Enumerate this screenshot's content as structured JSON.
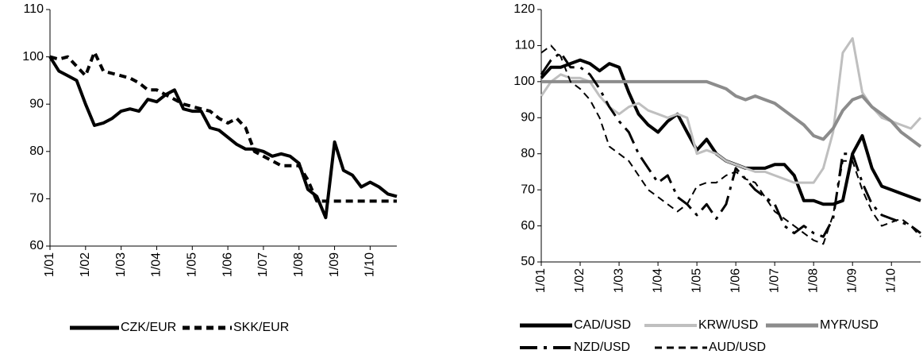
{
  "chart_data": [
    {
      "type": "line",
      "categories": [
        "1/01",
        null,
        null,
        null,
        "1/02",
        null,
        null,
        null,
        "1/03",
        null,
        null,
        null,
        "1/04",
        null,
        null,
        null,
        "1/05",
        null,
        null,
        null,
        "1/06",
        null,
        null,
        null,
        "1/07",
        null,
        null,
        null,
        "1/08",
        null,
        null,
        null,
        "1/09",
        null,
        null,
        null,
        "1/10",
        null,
        null,
        null
      ],
      "ylim": [
        60,
        110
      ],
      "yticks": [
        60,
        70,
        80,
        90,
        100,
        110
      ],
      "series": [
        {
          "name": "CZK/EUR",
          "color": "#000000",
          "style": "solid",
          "width": 4,
          "values": [
            100,
            97,
            96,
            95,
            90,
            85.5,
            86,
            87,
            88.5,
            89,
            88.5,
            91,
            90.5,
            92,
            93,
            89,
            88.5,
            88.5,
            85,
            84.5,
            83,
            81.5,
            80.5,
            80.5,
            80,
            79,
            79.5,
            79,
            77.5,
            72,
            70.5,
            66,
            82,
            76,
            75,
            72.5,
            73.5,
            72.5,
            71,
            70.5
          ]
        },
        {
          "name": "SKK/EUR",
          "color": "#000000",
          "style": "dashed",
          "width": 4,
          "values": [
            100,
            99.5,
            100,
            98,
            96,
            101,
            97,
            96.5,
            96,
            95.5,
            94.5,
            93,
            93,
            92,
            91,
            90,
            89.5,
            89,
            88.5,
            87,
            86,
            87,
            85,
            80,
            79,
            78,
            77,
            77,
            77,
            74,
            69.5,
            69.5,
            69.5,
            69.5,
            69.5,
            69.5,
            69.5,
            69.5,
            69.5,
            69.5
          ]
        }
      ]
    },
    {
      "type": "line",
      "categories": [
        "1/01",
        null,
        null,
        null,
        "1/02",
        null,
        null,
        null,
        "1/03",
        null,
        null,
        null,
        "1/04",
        null,
        null,
        null,
        "1/05",
        null,
        null,
        null,
        "1/06",
        null,
        null,
        null,
        "1/07",
        null,
        null,
        null,
        "1/08",
        null,
        null,
        null,
        "1/09",
        null,
        null,
        null,
        "1/10",
        null,
        null,
        null
      ],
      "ylim": [
        50,
        120
      ],
      "yticks": [
        50,
        60,
        70,
        80,
        90,
        100,
        110,
        120
      ],
      "series": [
        {
          "name": "CAD/USD",
          "color": "#000000",
          "style": "solid",
          "width": 4,
          "values": [
            101,
            104,
            104,
            105,
            106,
            105,
            103,
            105,
            104,
            97,
            91,
            88,
            86,
            89,
            91,
            86,
            81,
            84,
            80,
            78,
            77,
            76,
            76,
            76,
            77,
            77,
            74,
            67,
            67,
            66,
            66,
            67,
            80,
            85,
            76,
            71,
            70,
            69,
            68,
            67
          ]
        },
        {
          "name": "KRW/USD",
          "color": "#bfbfbf",
          "style": "solid",
          "width": 3,
          "values": [
            96,
            100,
            102,
            101,
            101,
            100,
            96,
            93,
            91,
            93,
            94,
            92,
            91,
            90,
            91,
            90,
            80,
            81,
            80,
            78,
            77,
            76,
            75,
            75,
            74,
            73,
            72,
            72,
            72,
            76,
            86,
            108,
            112,
            97,
            93,
            90,
            89,
            88,
            87,
            90
          ]
        },
        {
          "name": "MYR/USD",
          "color": "#8c8c8c",
          "style": "solid",
          "width": 4,
          "values": [
            100,
            100,
            100,
            100,
            100,
            100,
            100,
            100,
            100,
            100,
            100,
            100,
            100,
            100,
            100,
            100,
            100,
            100,
            99,
            98,
            96,
            95,
            96,
            95,
            94,
            92,
            90,
            88,
            85,
            84,
            87,
            92,
            95,
            96,
            93,
            91,
            89,
            86,
            84,
            82
          ]
        },
        {
          "name": "NZD/USD",
          "color": "#000000",
          "style": "longdash",
          "width": 3,
          "values": [
            102,
            106,
            108,
            104,
            104,
            102,
            98,
            93,
            89,
            86,
            80,
            76,
            72,
            74,
            68,
            66,
            63,
            66,
            62,
            66,
            76,
            73,
            70,
            68,
            66,
            60,
            58,
            60,
            58,
            57,
            62,
            80,
            80,
            72,
            66,
            63,
            62,
            61,
            60,
            58
          ]
        },
        {
          "name": "AUD/USD",
          "color": "#000000",
          "style": "dashed",
          "width": 2,
          "values": [
            108,
            110,
            107,
            100,
            98,
            95,
            90,
            82,
            80,
            78,
            74,
            70,
            68,
            66,
            64,
            66,
            71,
            72,
            72,
            74,
            75,
            73,
            72,
            68,
            64,
            62,
            60,
            58,
            56,
            55,
            63,
            78,
            78,
            70,
            64,
            60,
            61,
            62,
            60,
            57
          ]
        }
      ]
    }
  ]
}
